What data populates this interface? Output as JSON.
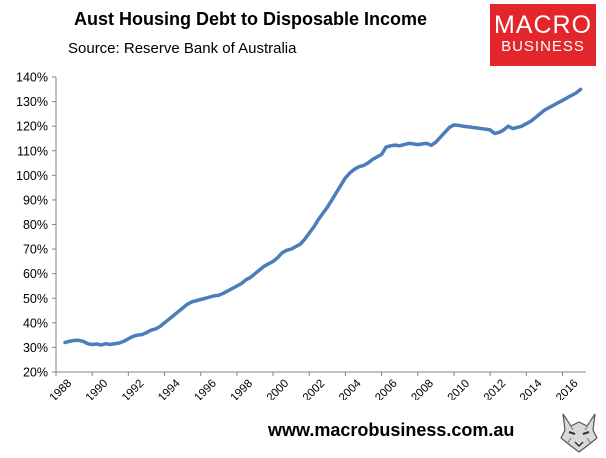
{
  "header": {
    "title": "Aust Housing Debt to Disposable Income",
    "subtitle": "Source: Reserve Bank of Australia"
  },
  "logo": {
    "line1": "MACRO",
    "line2": "BUSINESS",
    "color": "#e3262b"
  },
  "footer": {
    "website": "www.macrobusiness.com.au",
    "icon": "wolf-icon"
  },
  "chart_data": {
    "type": "line",
    "title": "Aust Housing Debt to Disposable Income",
    "xlabel": "",
    "ylabel": "",
    "xlim": [
      1988,
      2017.3
    ],
    "ylim": [
      20,
      140
    ],
    "x_ticks": [
      "1988",
      "1990",
      "1992",
      "1994",
      "1996",
      "1998",
      "2000",
      "2002",
      "2004",
      "2006",
      "2008",
      "2010",
      "2012",
      "2014",
      "2016"
    ],
    "y_ticks": [
      "20%",
      "30%",
      "40%",
      "50%",
      "60%",
      "70%",
      "80%",
      "90%",
      "100%",
      "110%",
      "120%",
      "130%",
      "140%"
    ],
    "grid": false,
    "legend": "none",
    "color": "#4a7ebb",
    "series": [
      {
        "x": [
          1988.5,
          1988.75,
          1989.0,
          1989.25,
          1989.5,
          1989.75,
          1990.0,
          1990.25,
          1990.5,
          1990.75,
          1991.0,
          1991.25,
          1991.5,
          1991.75,
          1992.0,
          1992.25,
          1992.5,
          1992.75,
          1993.0,
          1993.25,
          1993.5,
          1993.75,
          1994.0,
          1994.25,
          1994.5,
          1994.75,
          1995.0,
          1995.25,
          1995.5,
          1995.75,
          1996.0,
          1996.25,
          1996.5,
          1996.75,
          1997.0,
          1997.25,
          1997.5,
          1997.75,
          1998.0,
          1998.25,
          1998.5,
          1998.75,
          1999.0,
          1999.25,
          1999.5,
          1999.75,
          2000.0,
          2000.25,
          2000.5,
          2000.75,
          2001.0,
          2001.25,
          2001.5,
          2001.75,
          2002.0,
          2002.25,
          2002.5,
          2002.75,
          2003.0,
          2003.25,
          2003.5,
          2003.75,
          2004.0,
          2004.25,
          2004.5,
          2004.75,
          2005.0,
          2005.25,
          2005.5,
          2005.75,
          2006.0,
          2006.25,
          2006.5,
          2006.75,
          2007.0,
          2007.25,
          2007.5,
          2007.75,
          2008.0,
          2008.25,
          2008.5,
          2008.75,
          2009.0,
          2009.25,
          2009.5,
          2009.75,
          2010.0,
          2010.25,
          2010.5,
          2010.75,
          2011.0,
          2011.25,
          2011.5,
          2011.75,
          2012.0,
          2012.25,
          2012.5,
          2012.75,
          2013.0,
          2013.25,
          2013.5,
          2013.75,
          2014.0,
          2014.25,
          2014.5,
          2014.75,
          2015.0,
          2015.25,
          2015.5,
          2015.75,
          2016.0,
          2016.25,
          2016.5,
          2016.75,
          2017.0
        ],
        "values": [
          32,
          32.5,
          32.8,
          32.9,
          32.5,
          31.5,
          31.2,
          31.4,
          31.0,
          31.5,
          31.2,
          31.5,
          31.8,
          32.5,
          33.5,
          34.5,
          35.0,
          35.2,
          36.0,
          37.0,
          37.5,
          38.5,
          40.0,
          41.5,
          43.0,
          44.5,
          46.0,
          47.5,
          48.5,
          49.0,
          49.5,
          50.0,
          50.5,
          51.0,
          51.2,
          52.0,
          53.0,
          54.0,
          55.0,
          56.0,
          57.5,
          58.5,
          60.0,
          61.5,
          63.0,
          64.0,
          65.0,
          66.5,
          68.5,
          69.5,
          70.0,
          71.0,
          72.0,
          74.0,
          76.5,
          79.0,
          82.0,
          84.5,
          87.0,
          90.0,
          93.0,
          96.0,
          99.0,
          101.0,
          102.5,
          103.5,
          104.0,
          105.0,
          106.5,
          107.5,
          108.5,
          111.5,
          112.0,
          112.3,
          112.0,
          112.5,
          113.0,
          112.8,
          112.5,
          112.8,
          113.0,
          112.2,
          113.5,
          115.5,
          117.5,
          119.5,
          120.5,
          120.3,
          120.0,
          119.8,
          119.5,
          119.3,
          119.0,
          118.8,
          118.5,
          117.0,
          117.5,
          118.5,
          120.0,
          119.0,
          119.5,
          120.0,
          121.0,
          122.0,
          123.5,
          125.0,
          126.5,
          127.5,
          128.5,
          129.5,
          130.5,
          131.5,
          132.5,
          133.5,
          135.0
        ]
      }
    ]
  }
}
